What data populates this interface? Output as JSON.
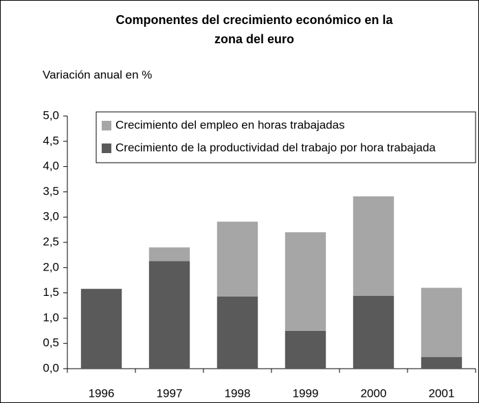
{
  "chart_data": {
    "type": "stacked_bar",
    "title": [
      "Componentes del crecimiento económico en la",
      "zona del euro"
    ],
    "subtitle": "Variación anual en %",
    "categories": [
      "1996",
      "1997",
      "1998",
      "1999",
      "2000",
      "2001"
    ],
    "series": [
      {
        "name": "Crecimiento de la productividad del trabajo por hora trabajada",
        "color": "#5a5a5a",
        "values": [
          1.58,
          2.13,
          1.43,
          0.75,
          1.44,
          0.23
        ]
      },
      {
        "name": "Crecimiento del empleo en horas trabajadas",
        "color": "#a6a6a6",
        "values": [
          0,
          0.27,
          1.48,
          1.95,
          1.97,
          1.37
        ]
      }
    ],
    "ylim": [
      0,
      5
    ],
    "yticks": [
      {
        "value": 0,
        "label": "0,0"
      },
      {
        "value": 0.5,
        "label": "0,5"
      },
      {
        "value": 1,
        "label": "1,0"
      },
      {
        "value": 1.5,
        "label": "1,5"
      },
      {
        "value": 2,
        "label": "2,0"
      },
      {
        "value": 2.5,
        "label": "2,5"
      },
      {
        "value": 3,
        "label": "3,0"
      },
      {
        "value": 3.5,
        "label": "3,5"
      },
      {
        "value": 4,
        "label": "4,0"
      },
      {
        "value": 4.5,
        "label": "4,5"
      },
      {
        "value": 5,
        "label": "5,0"
      }
    ],
    "legend": "top-right"
  }
}
